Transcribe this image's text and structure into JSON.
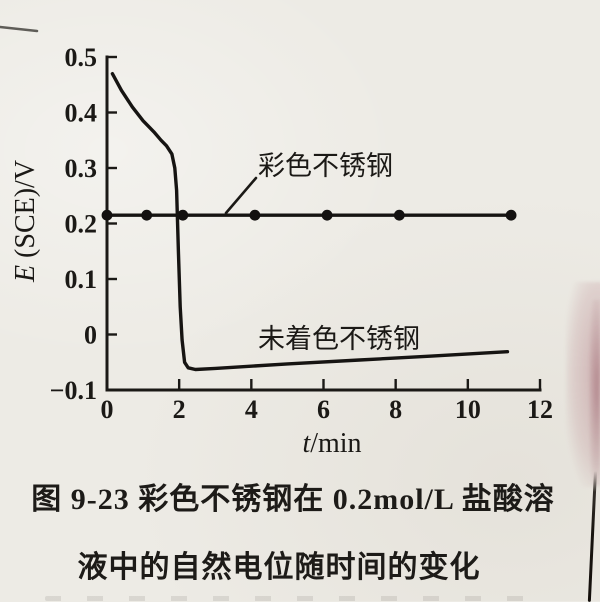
{
  "figure": {
    "caption_line1": "图 9-23  彩色不锈钢在 0.2mol/L 盐酸溶",
    "caption_line2": "液中的自然电位随时间的变化"
  },
  "chart_data": {
    "type": "line",
    "title": "",
    "xlabel": "t/min",
    "xlabel_symbol": "t",
    "xlabel_unit": "/min",
    "ylabel": "E (SCE)/V",
    "ylabel_symbol": "E",
    "ylabel_unit": " (SCE)/V",
    "xlim": [
      0,
      12
    ],
    "ylim": [
      -0.1,
      0.5
    ],
    "grid": false,
    "legend_position": "inline-annotations",
    "xticks": {
      "values": [
        0,
        2,
        4,
        6,
        8,
        10,
        12
      ],
      "labels": [
        "0",
        "2",
        "4",
        "6",
        "8",
        "10",
        "12"
      ]
    },
    "yticks": {
      "values": [
        0.5,
        0.4,
        0.3,
        0.2,
        0.1,
        0,
        -0.1
      ],
      "labels": [
        "0.5",
        "0.4",
        "0.3",
        "0.2",
        "0.1",
        "0",
        "−0.1"
      ]
    },
    "series": [
      {
        "name": "彩色不锈钢",
        "points": [
          [
            0,
            0.215
          ],
          [
            11.2,
            0.215
          ]
        ],
        "markers": [
          [
            0,
            0.215
          ],
          [
            1.1,
            0.215
          ],
          [
            2.1,
            0.215
          ],
          [
            4.1,
            0.215
          ],
          [
            6.1,
            0.215
          ],
          [
            8.1,
            0.215
          ],
          [
            11.2,
            0.215
          ]
        ]
      },
      {
        "name": "未着色不锈钢",
        "points": [
          [
            0.15,
            0.47
          ],
          [
            0.4,
            0.44
          ],
          [
            0.7,
            0.41
          ],
          [
            1.0,
            0.385
          ],
          [
            1.3,
            0.365
          ],
          [
            1.5,
            0.35
          ],
          [
            1.65,
            0.34
          ],
          [
            1.8,
            0.325
          ],
          [
            1.88,
            0.3
          ],
          [
            1.93,
            0.26
          ],
          [
            1.98,
            0.15
          ],
          [
            2.03,
            0.05
          ],
          [
            2.08,
            -0.01
          ],
          [
            2.15,
            -0.05
          ],
          [
            2.25,
            -0.06
          ],
          [
            2.45,
            -0.063
          ],
          [
            3,
            -0.061
          ],
          [
            5,
            -0.053
          ],
          [
            7,
            -0.046
          ],
          [
            9,
            -0.039
          ],
          [
            11.1,
            -0.031
          ]
        ],
        "markers": []
      }
    ],
    "annotations": [
      {
        "text": "彩色不锈钢",
        "target_series": "彩色不锈钢"
      },
      {
        "text": "未着色不锈钢",
        "target_series": "未着色不锈钢"
      }
    ],
    "ink_color": "#1b1916",
    "paper_color": "#edebe5"
  }
}
